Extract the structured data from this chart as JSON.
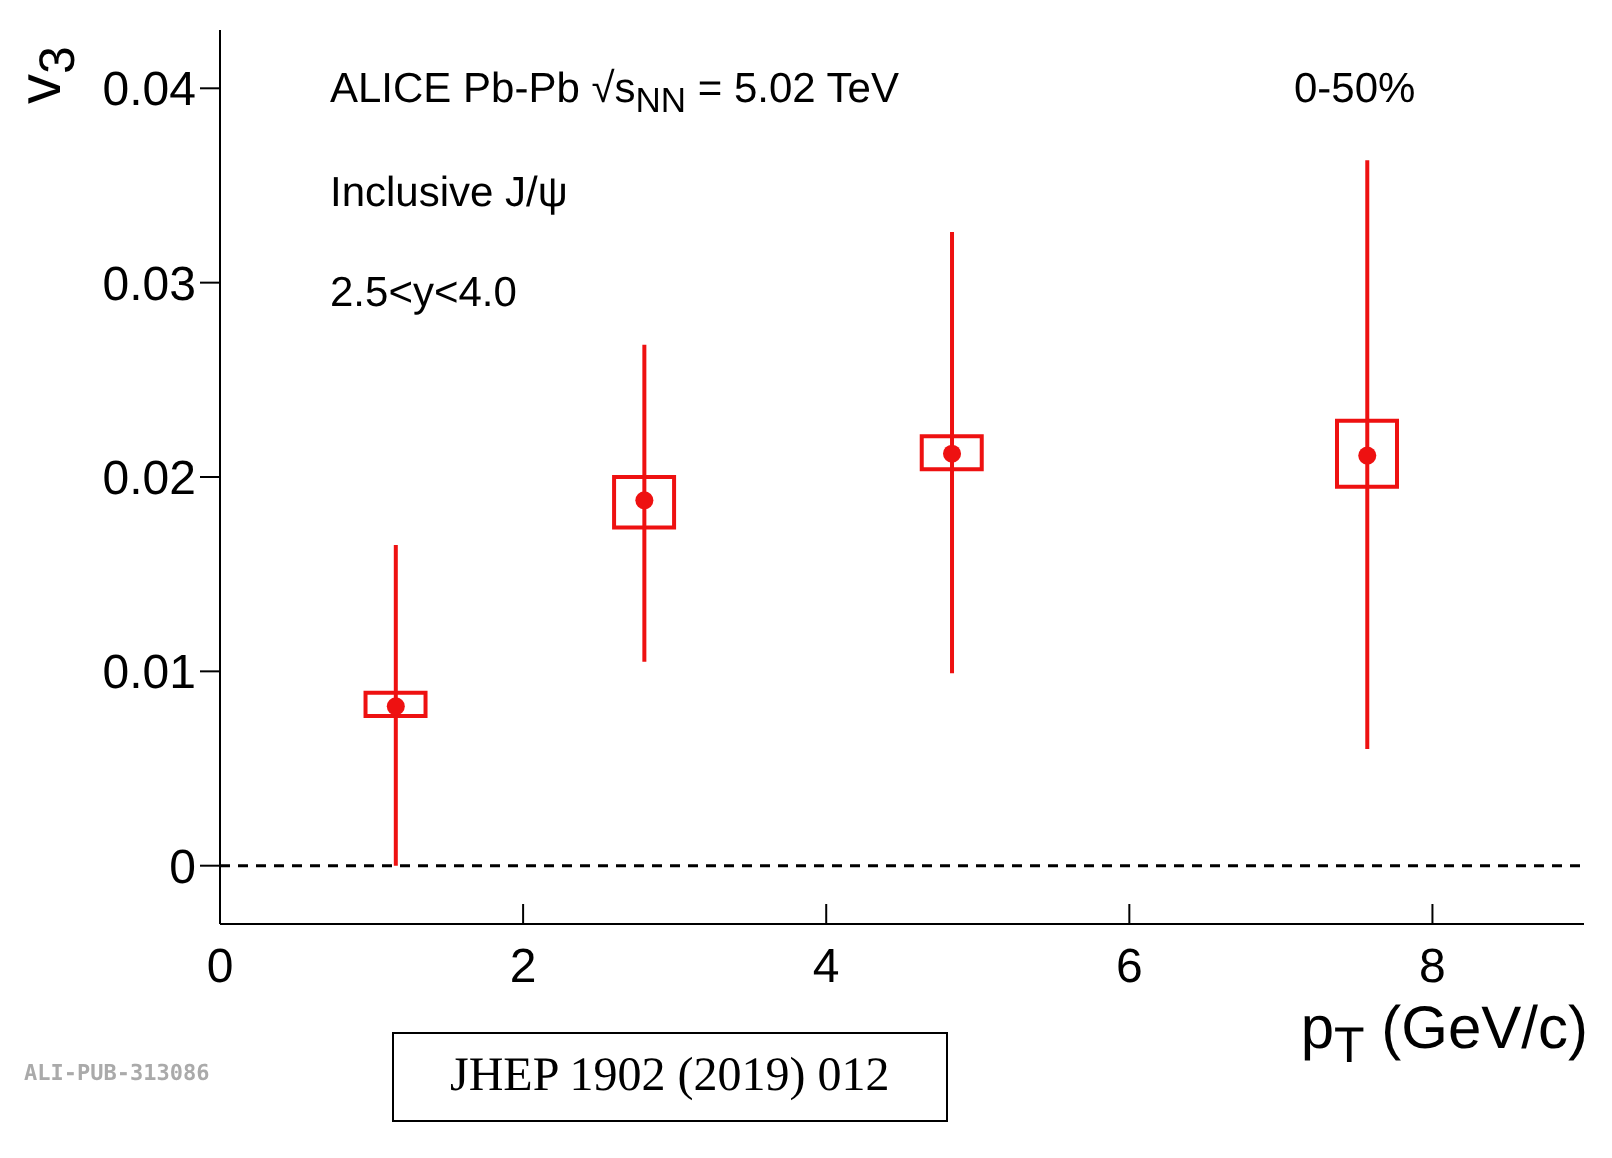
{
  "chart_data": {
    "type": "scatter",
    "xlabel": "p$_{T}$ (GeV/c)",
    "ylabel": "v$_{3}$",
    "annotations": [
      "ALICE Pb-Pb  √s$_{NN}$ = 5.02 TeV",
      "0-50%",
      "Inclusive J/ψ",
      "2.5<y<4.0",
      "ALI-PUB-313086",
      "JHEP 1902 (2019) 012"
    ],
    "xlim": [
      0,
      9
    ],
    "xticks": [
      0,
      2,
      4,
      6,
      8
    ],
    "ylim": [
      -0.003,
      0.043
    ],
    "yticks": [
      0,
      0.01,
      0.02,
      0.03,
      0.04
    ],
    "grid": false,
    "marker": "circle",
    "series": [
      {
        "color": "#ee1111",
        "x": [
          1.16,
          2.8,
          4.83,
          7.57
        ],
        "values": [
          0.0082,
          0.0188,
          0.0212,
          0.0211
        ],
        "errors": [
          [
            0.0,
            0.0165
          ],
          [
            0.0105,
            0.0268
          ],
          [
            0.0099,
            0.0326
          ],
          [
            0.006,
            0.0363
          ]
        ]
      },
      {
        "type": "bar",
        "color": "#ee1111",
        "x": [
          1.16,
          2.8,
          4.83,
          7.57
        ],
        "base": [
          0.0077,
          0.0174,
          0.0204,
          0.0195
        ],
        "values": [
          0.0012,
          0.0026,
          0.0017,
          0.0034
        ]
      }
    ],
    "ref_lines": [
      {
        "axis": "y",
        "value": 0,
        "color": "#000000",
        "line_style": "dashed"
      }
    ]
  }
}
